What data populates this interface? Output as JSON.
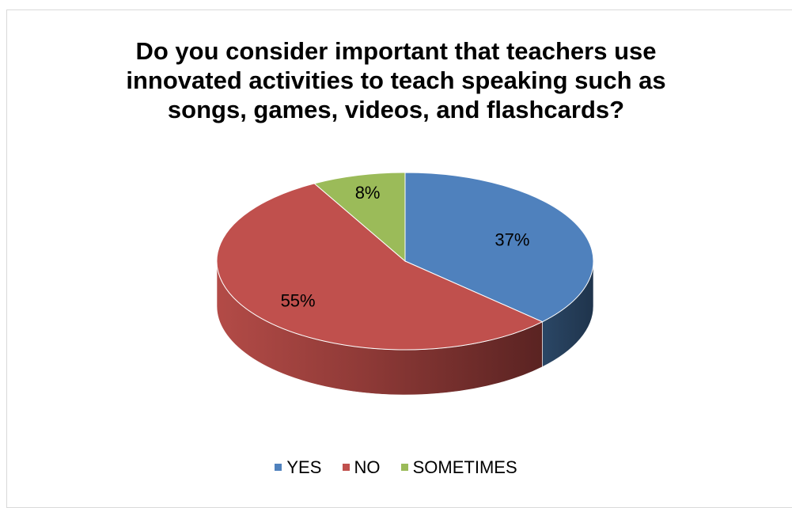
{
  "chart_data": {
    "type": "pie",
    "title_lines": [
      "Do you consider important that teachers use",
      "innovated activities to teach speaking such as",
      "songs, games, videos, and flashcards?"
    ],
    "categories": [
      "YES",
      "NO",
      "SOMETIMES"
    ],
    "values": [
      37,
      55,
      8
    ],
    "data_labels": [
      "37%",
      "55%",
      "8%"
    ],
    "colors": [
      "#4f81bd",
      "#c0504d",
      "#9bbb59"
    ],
    "legend_position": "bottom",
    "three_d": true
  }
}
